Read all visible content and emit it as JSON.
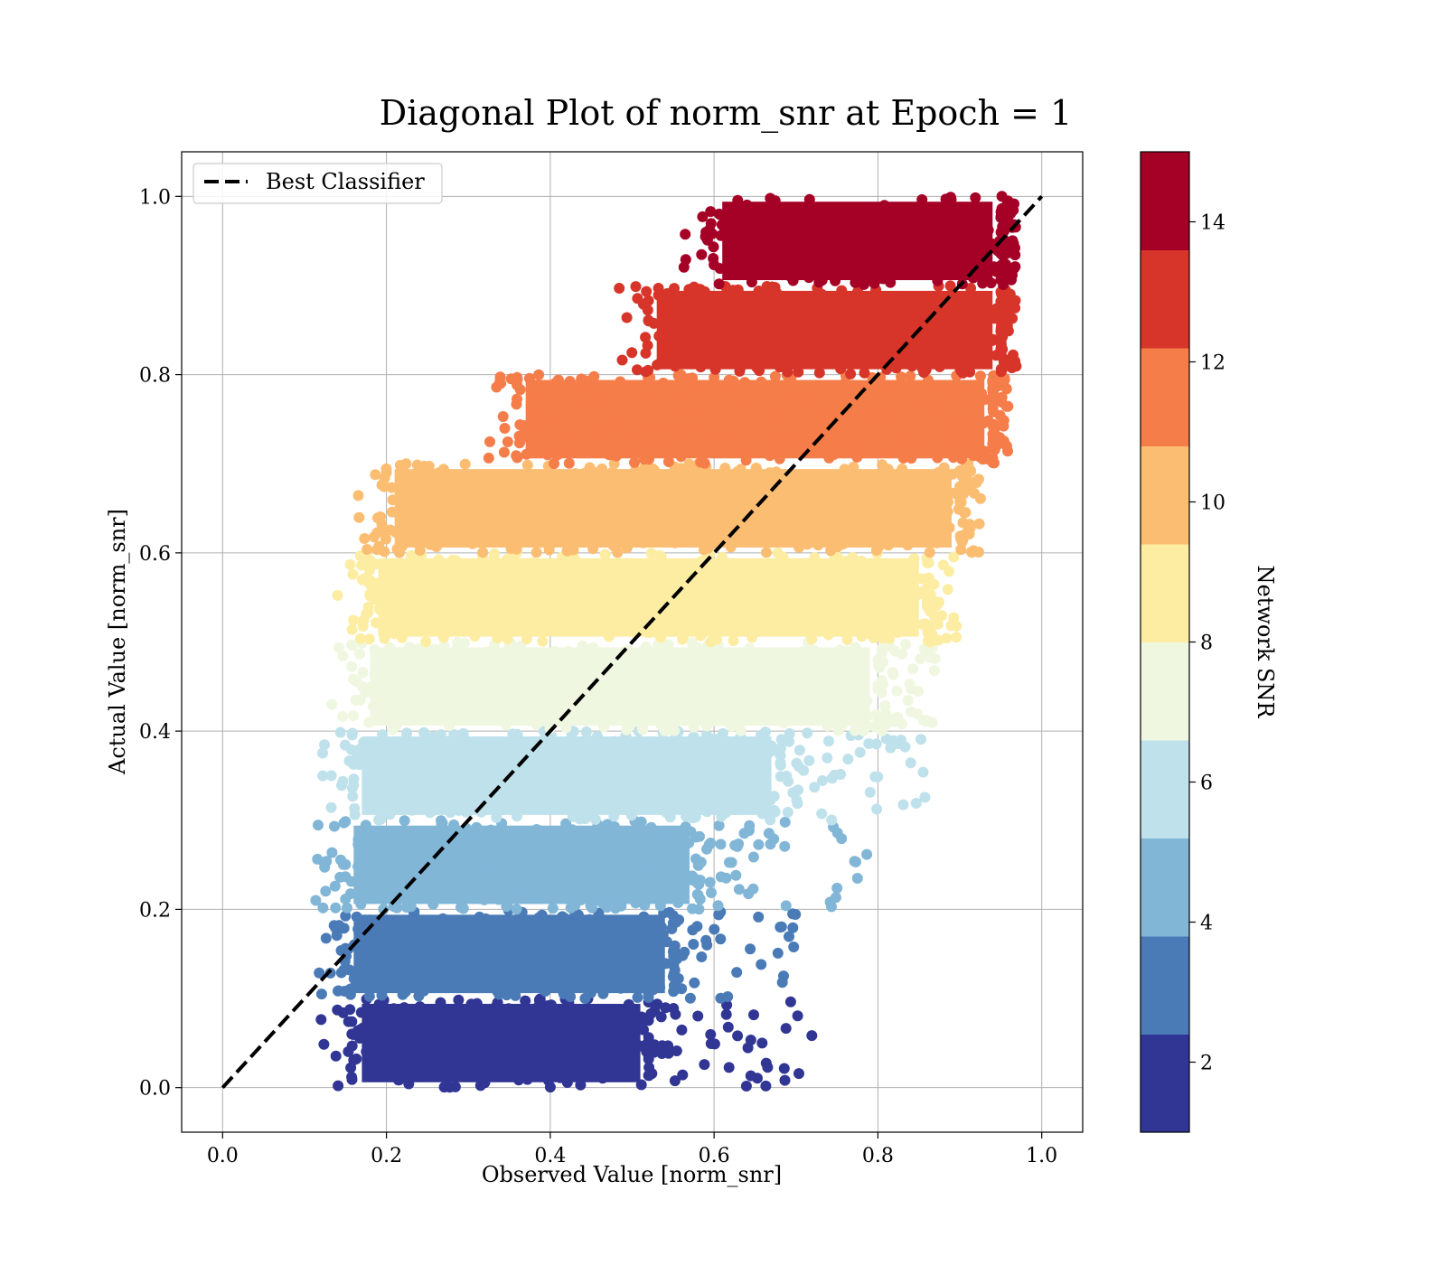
{
  "chart_data": {
    "type": "scatter",
    "title": "Diagonal Plot of norm_snr at Epoch = 1",
    "xlabel": "Observed Value [norm_snr]",
    "ylabel": "Actual Value [norm_snr]",
    "xlim": [
      -0.05,
      1.05
    ],
    "ylim": [
      -0.05,
      1.05
    ],
    "x_ticks": [
      "0.0",
      "0.2",
      "0.4",
      "0.6",
      "0.8",
      "1.0"
    ],
    "y_ticks": [
      "0.0",
      "0.2",
      "0.4",
      "0.6",
      "0.8",
      "1.0"
    ],
    "grid": true,
    "legend": {
      "placement": "upper-left",
      "entries": [
        "Best Classifier"
      ]
    },
    "reference_line": {
      "name": "Best Classifier",
      "x": [
        0.0,
        1.0
      ],
      "y": [
        0.0,
        1.0
      ],
      "style": "dashed",
      "color": "#000000"
    },
    "colorbar": {
      "label": "Network SNR",
      "range": [
        1,
        15
      ],
      "ticks": [
        "2",
        "4",
        "6",
        "8",
        "10",
        "12",
        "14"
      ],
      "colors": [
        "#313695",
        "#4a7bb7",
        "#81b6d7",
        "#bee1eb",
        "#eff7e0",
        "#fdeda3",
        "#fbbd71",
        "#f57d4a",
        "#d73529",
        "#a50026"
      ]
    },
    "bands": [
      {
        "snr": 1.7,
        "actual": [
          0.0,
          0.1
        ],
        "observed_core": [
          0.16,
          0.52
        ],
        "observed_scatter_max": 0.73,
        "color": "#313695"
      },
      {
        "snr": 3.1,
        "actual": [
          0.1,
          0.2
        ],
        "observed_core": [
          0.15,
          0.55
        ],
        "observed_scatter_max": 0.71,
        "color": "#4a7bb7"
      },
      {
        "snr": 4.5,
        "actual": [
          0.2,
          0.3
        ],
        "observed_core": [
          0.15,
          0.58
        ],
        "observed_scatter_max": 0.8,
        "color": "#81b6d7"
      },
      {
        "snr": 5.9,
        "actual": [
          0.3,
          0.4
        ],
        "observed_core": [
          0.16,
          0.68
        ],
        "observed_scatter_max": 0.87,
        "color": "#bee1eb"
      },
      {
        "snr": 7.3,
        "actual": [
          0.4,
          0.5
        ],
        "observed_core": [
          0.17,
          0.8
        ],
        "observed_scatter_max": 0.87,
        "color": "#eff7e0"
      },
      {
        "snr": 8.7,
        "actual": [
          0.5,
          0.6
        ],
        "observed_core": [
          0.18,
          0.86
        ],
        "observed_scatter_max": 0.9,
        "color": "#fdeda3"
      },
      {
        "snr": 10.1,
        "actual": [
          0.6,
          0.7
        ],
        "observed_core": [
          0.2,
          0.9
        ],
        "observed_scatter_max": 0.93,
        "color": "#fbbd71"
      },
      {
        "snr": 11.5,
        "actual": [
          0.7,
          0.8
        ],
        "observed_core": [
          0.36,
          0.94
        ],
        "observed_scatter_max": 0.96,
        "color": "#f57d4a"
      },
      {
        "snr": 12.9,
        "actual": [
          0.8,
          0.9
        ],
        "observed_core": [
          0.52,
          0.95
        ],
        "observed_scatter_max": 0.97,
        "color": "#d73529"
      },
      {
        "snr": 14.3,
        "actual": [
          0.9,
          1.0
        ],
        "observed_core": [
          0.6,
          0.95
        ],
        "observed_scatter_max": 0.97,
        "color": "#a50026"
      }
    ]
  }
}
